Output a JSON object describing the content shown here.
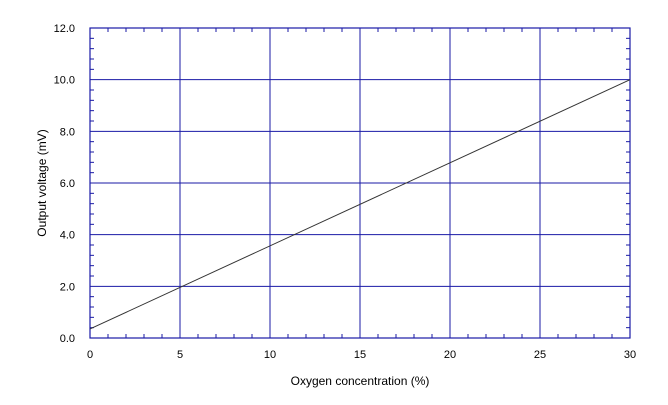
{
  "chart_data": {
    "type": "line",
    "xlabel": "Oxygen concentration (%)",
    "ylabel": "Output voltage (mV)",
    "xlim": [
      0,
      30
    ],
    "ylim": [
      0,
      12
    ],
    "x_ticks": [
      "0",
      "5",
      "10",
      "15",
      "20",
      "25",
      "30"
    ],
    "y_ticks": [
      "0.0",
      "2.0",
      "4.0",
      "6.0",
      "8.0",
      "10.0",
      "12.0"
    ],
    "grid": true,
    "series": [
      {
        "x": [
          0,
          30
        ],
        "values": [
          0.35,
          10.0
        ]
      }
    ],
    "colors": {
      "grid": "#1a1aa6",
      "frame": "#1a1aa6",
      "line": "#333333"
    }
  }
}
